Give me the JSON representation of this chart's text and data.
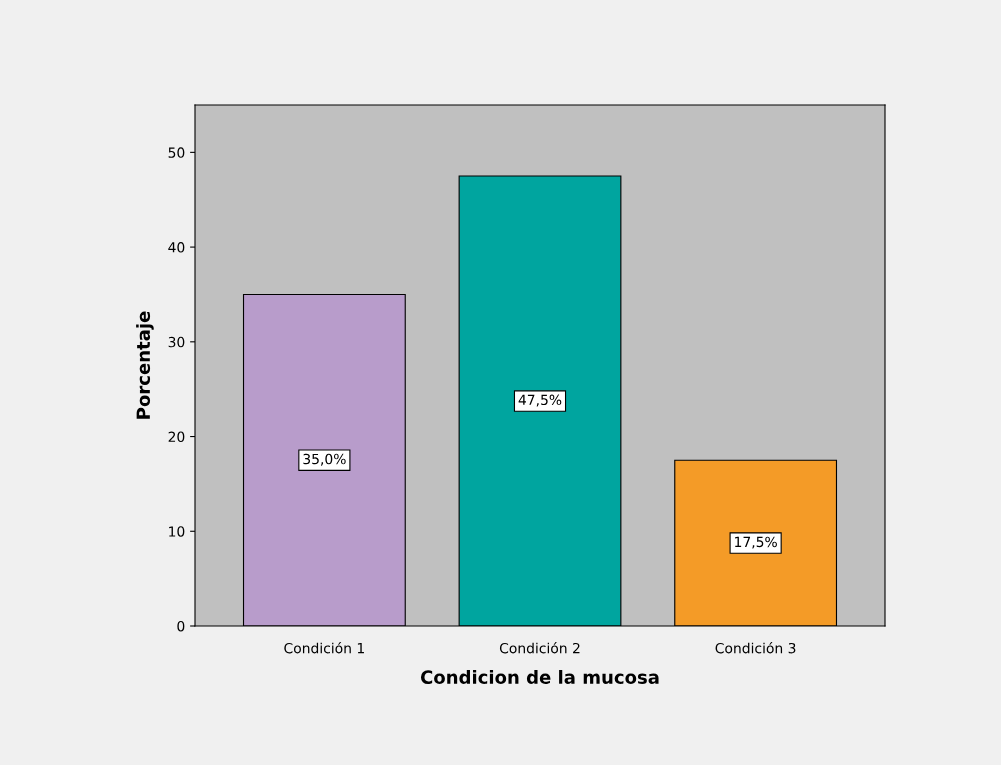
{
  "chart_data": {
    "type": "bar",
    "xlabel": "Condicion de la mucosa",
    "ylabel": "Porcentaje",
    "categories": [
      "Condición 1",
      "Condición 2",
      "Condición 3"
    ],
    "values": [
      35.0,
      47.5,
      17.5
    ],
    "colors": [
      "#b89ccb",
      "#00a59f",
      "#f49b27"
    ],
    "value_labels": [
      "35,0%",
      "47,5%",
      "17,5%"
    ],
    "ylim": [
      0,
      55
    ],
    "yticks": [
      0,
      10,
      20,
      30,
      40,
      50
    ],
    "grid": false,
    "legend": false
  }
}
